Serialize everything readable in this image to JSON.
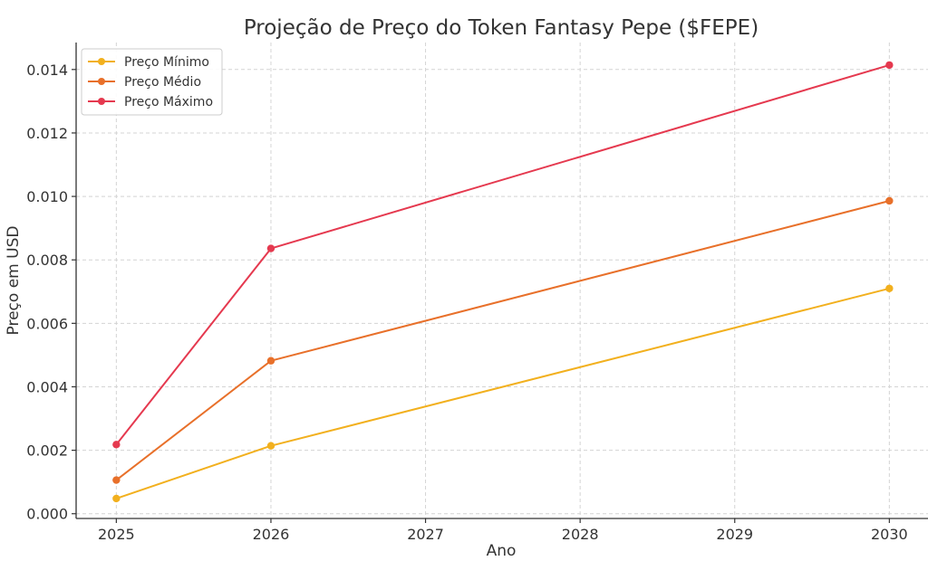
{
  "chart_data": {
    "type": "line",
    "title": "Projeção de Preço do Token Fantasy Pepe ($FEPE)",
    "xlabel": "Ano",
    "ylabel": "Preço em USD",
    "x": [
      2025,
      2026,
      2027,
      2028,
      2029,
      2030
    ],
    "x_ticks": [
      "2025",
      "2026",
      "2027",
      "2028",
      "2029",
      "2030"
    ],
    "y_ticks": [
      "0.000",
      "0.002",
      "0.004",
      "0.006",
      "0.008",
      "0.010",
      "0.012",
      "0.014"
    ],
    "ylim": [
      -0.00015,
      0.01485
    ],
    "xlim": [
      2024.74,
      2030.25
    ],
    "grid": true,
    "legend_position": "top-left",
    "series": [
      {
        "name": "Preço Mínimo",
        "color": "#f2b01e",
        "x": [
          2025,
          2026,
          2030
        ],
        "values": [
          0.00048,
          0.00214,
          0.0071
        ]
      },
      {
        "name": "Preço Médio",
        "color": "#e8702a",
        "x": [
          2025,
          2026,
          2030
        ],
        "values": [
          0.00106,
          0.00482,
          0.00986
        ]
      },
      {
        "name": "Preço Máximo",
        "color": "#e5394f",
        "x": [
          2025,
          2026,
          2030
        ],
        "values": [
          0.00218,
          0.00836,
          0.01414
        ]
      }
    ]
  }
}
